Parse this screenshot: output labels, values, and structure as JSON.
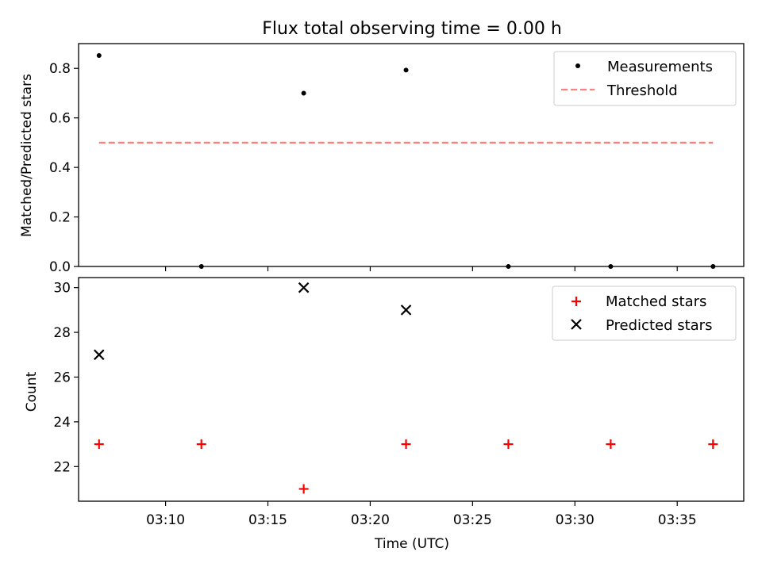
{
  "chart_data": [
    {
      "type": "scatter",
      "title": "Flux total observing time = 0.00 h",
      "ylabel": "Matched/Predicted stars",
      "xlabel": "",
      "ylim": [
        0,
        0.9
      ],
      "y_ticks": [
        0.0,
        0.2,
        0.4,
        0.6,
        0.8
      ],
      "y_tick_labels": [
        "0.0",
        "0.2",
        "0.4",
        "0.6",
        "0.8"
      ],
      "series": [
        {
          "name": "Measurements",
          "marker": "dot",
          "color": "#000000",
          "x": [
            "03:06:45",
            "03:11:45",
            "03:16:45",
            "03:21:45",
            "03:26:45",
            "03:31:45",
            "03:36:45"
          ],
          "y": [
            0.852,
            0.0,
            0.7,
            0.793,
            0.0,
            0.0,
            0.0
          ]
        },
        {
          "name": "Threshold",
          "style": "dashed",
          "color": "#ff7f7f",
          "x": [
            "03:06:45",
            "03:36:45"
          ],
          "y": [
            0.5,
            0.5
          ]
        }
      ],
      "legend": "top-right"
    },
    {
      "type": "scatter",
      "title": "",
      "ylabel": "Count",
      "xlabel": "Time (UTC)",
      "ylim": [
        20.45,
        30.45
      ],
      "y_ticks": [
        22,
        24,
        26,
        28,
        30
      ],
      "y_tick_labels": [
        "22",
        "24",
        "26",
        "28",
        "30"
      ],
      "x_ticks": [
        "03:10",
        "03:15",
        "03:20",
        "03:25",
        "03:30",
        "03:35"
      ],
      "series": [
        {
          "name": "Matched stars",
          "marker": "plus",
          "color": "#ff0000",
          "x": [
            "03:06:45",
            "03:11:45",
            "03:16:45",
            "03:21:45",
            "03:26:45",
            "03:31:45",
            "03:36:45"
          ],
          "y": [
            23,
            23,
            21,
            23,
            23,
            23,
            23
          ]
        },
        {
          "name": "Predicted stars",
          "marker": "x",
          "color": "#000000",
          "x": [
            "03:06:45",
            "03:16:45",
            "03:21:45"
          ],
          "y": [
            27,
            30,
            29
          ]
        }
      ],
      "legend": "top-right"
    }
  ],
  "x_range": [
    "03:05:45",
    "03:38:15"
  ]
}
